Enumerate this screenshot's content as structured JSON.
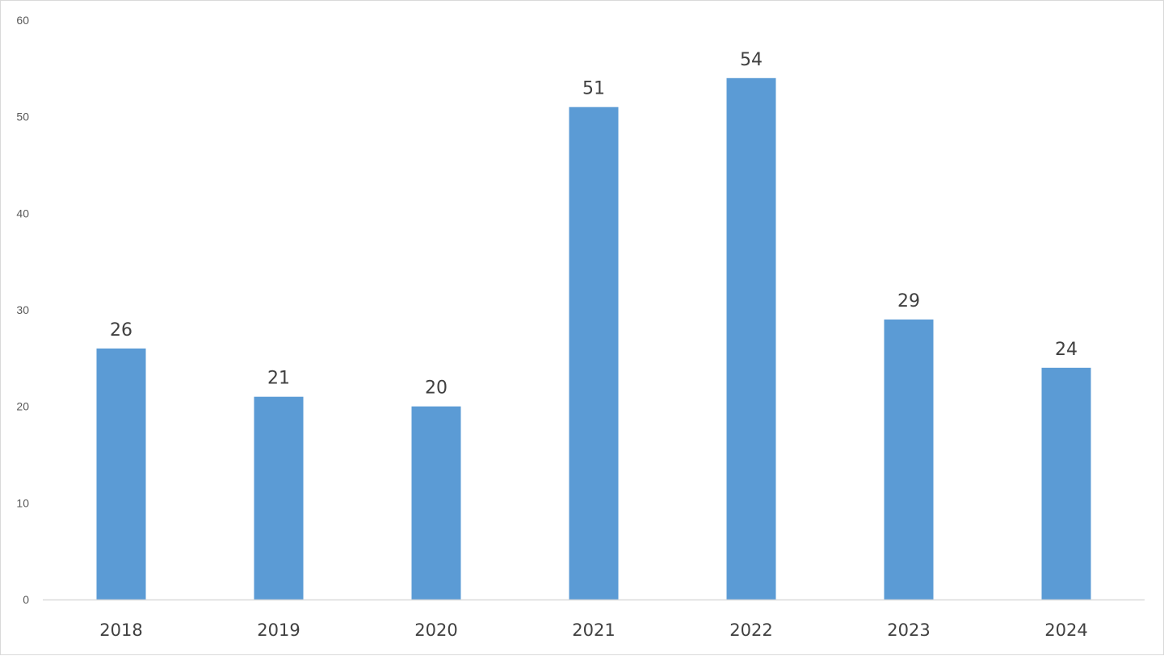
{
  "chart_data": {
    "type": "bar",
    "categories": [
      "2018",
      "2019",
      "2020",
      "2021",
      "2022",
      "2023",
      "2024"
    ],
    "values": [
      26,
      21,
      20,
      51,
      54,
      29,
      24
    ],
    "title": "",
    "xlabel": "",
    "ylabel": "",
    "ylim": [
      0,
      60
    ],
    "yticks": [
      0,
      10,
      20,
      30,
      40,
      50,
      60
    ],
    "grid": false,
    "legend": "none",
    "data_labels": true,
    "colors": {
      "bar": "#5b9bd5",
      "axis": "#d9d9d9",
      "text": "#404040"
    }
  }
}
